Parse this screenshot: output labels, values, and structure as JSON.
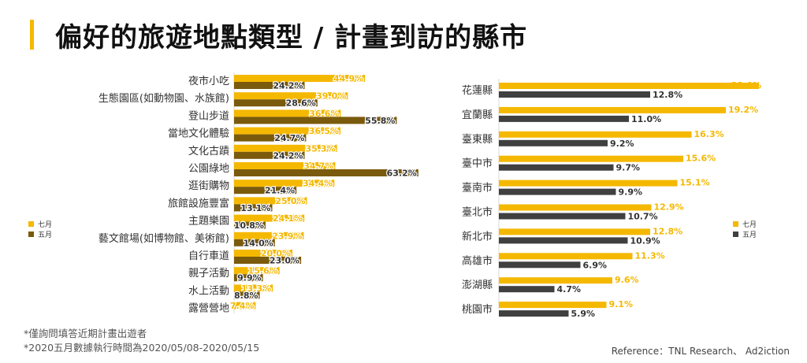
{
  "title": "偏好的旅遊地點類型 / 計畫到訪的縣市",
  "colors": {
    "accent": "#f5b800",
    "july": "#f5b800",
    "may_left": "#7a5a0c",
    "may_right": "#404040"
  },
  "legend": {
    "july_label": "七月",
    "may_label": "五月"
  },
  "footnotes": [
    "*僅詢問填答近期計畫出遊者",
    "*2020五月數據執行時間為2020/05/08-2020/05/15"
  ],
  "reference": "Reference：TNL Research、 Ad2iction",
  "chart_data": [
    {
      "type": "bar",
      "orientation": "horizontal",
      "categories": [
        "夜市小吃",
        "生態園區(如動物園、水族館)",
        "登山步道",
        "當地文化體驗",
        "文化古蹟",
        "公園綠地",
        "逛街購物",
        "旅館設施豐富",
        "主題樂園",
        "藝文館場(如博物館、美術館)",
        "自行車道",
        "親子活動",
        "水上活動",
        "露營營地"
      ],
      "series": [
        {
          "name": "七月",
          "values": [
            44.9,
            39.0,
            36.6,
            36.5,
            35.3,
            34.7,
            34.4,
            25.0,
            24.1,
            23.9,
            20.0,
            15.6,
            13.3,
            7.4
          ],
          "labels": [
            "44.9%",
            "39.0%",
            "36.6%",
            "36.5%",
            "35.3%",
            "34.7%",
            "34.4%",
            "25.0%",
            "24.1%",
            "23.9%",
            "20.0%",
            "15.6%",
            "13.3%",
            "7.4%"
          ]
        },
        {
          "name": "五月",
          "values": [
            24.2,
            28.6,
            55.8,
            24.7,
            24.2,
            63.2,
            21.4,
            13.1,
            10.8,
            14.0,
            23.0,
            9.9,
            8.8,
            null
          ],
          "labels": [
            "24.2%",
            "28.6%",
            "55.8%",
            "24.7%",
            "24.2%",
            "63.2%",
            "21.4%",
            "13.1%",
            "10.8%",
            "14.0%",
            "23.0%",
            "9.9%",
            "8.8%",
            ""
          ]
        }
      ],
      "unit": "%",
      "legend_position": "left"
    },
    {
      "type": "bar",
      "orientation": "horizontal",
      "categories": [
        "花蓮縣",
        "宜蘭縣",
        "臺東縣",
        "臺中市",
        "臺南市",
        "臺北市",
        "新北市",
        "高雄市",
        "澎湖縣",
        "桃園市"
      ],
      "series": [
        {
          "name": "七月",
          "values": [
            22.0,
            19.2,
            16.3,
            15.6,
            15.1,
            12.9,
            12.8,
            11.3,
            9.6,
            9.1
          ],
          "labels": [
            "22.0%",
            "19.2%",
            "16.3%",
            "15.6%",
            "15.1%",
            "12.9%",
            "12.8%",
            "11.3%",
            "9.6%",
            "9.1%"
          ]
        },
        {
          "name": "五月",
          "values": [
            12.8,
            11.0,
            9.2,
            9.7,
            9.9,
            10.7,
            10.9,
            6.9,
            4.7,
            5.9
          ],
          "labels": [
            "12.8%",
            "11.0%",
            "9.2%",
            "9.7%",
            "9.9%",
            "10.7%",
            "10.9%",
            "6.9%",
            "4.7%",
            "5.9%"
          ]
        }
      ],
      "unit": "%",
      "legend_position": "right"
    }
  ]
}
